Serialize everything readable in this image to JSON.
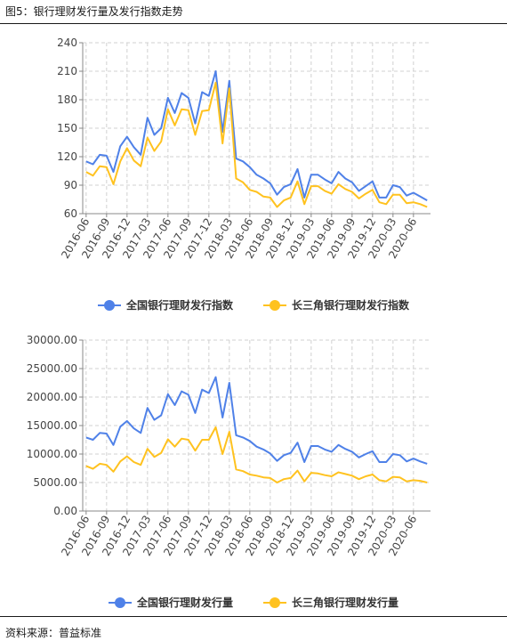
{
  "header": {
    "title": "图5：银行理财发行量及发行指数走势"
  },
  "footer": {
    "source": "资料来源：普益标准"
  },
  "colors": {
    "blue": "#4F81E8",
    "yellow": "#FFC21F",
    "grid": "#d0d0d0",
    "axis": "#888888"
  },
  "chart_data": [
    {
      "type": "line",
      "title": "",
      "xlabel": "",
      "ylabel": "",
      "ylim": [
        60,
        240
      ],
      "yticks": [
        "60",
        "90",
        "120",
        "150",
        "180",
        "210",
        "240"
      ],
      "grid": true,
      "legend_position": "bottom",
      "x_tick_labels": [
        "2016-06",
        "2016-09",
        "2016-12",
        "2017-03",
        "2017-06",
        "2017-09",
        "2017-12",
        "2018-03",
        "2018-06",
        "2018-09",
        "2018-12",
        "2019-03",
        "2019-06",
        "2019-09",
        "2019-12",
        "2020-03",
        "2020-06"
      ],
      "x": [
        "2016-06",
        "2016-07",
        "2016-08",
        "2016-09",
        "2016-10",
        "2016-11",
        "2016-12",
        "2017-01",
        "2017-02",
        "2017-03",
        "2017-04",
        "2017-05",
        "2017-06",
        "2017-07",
        "2017-08",
        "2017-09",
        "2017-10",
        "2017-11",
        "2017-12",
        "2018-01",
        "2018-02",
        "2018-03",
        "2018-04",
        "2018-05",
        "2018-06",
        "2018-07",
        "2018-08",
        "2018-09",
        "2018-10",
        "2018-11",
        "2018-12",
        "2019-01",
        "2019-02",
        "2019-03",
        "2019-04",
        "2019-05",
        "2019-06",
        "2019-07",
        "2019-08",
        "2019-09",
        "2019-10",
        "2019-11",
        "2019-12",
        "2020-01",
        "2020-02",
        "2020-03",
        "2020-04",
        "2020-05",
        "2020-06",
        "2020-07",
        "2020-08"
      ],
      "series": [
        {
          "name": "全国银行理财发行指数",
          "color": "#4F81E8",
          "values": [
            115,
            112,
            122,
            121,
            104,
            131,
            141,
            130,
            122,
            161,
            143,
            150,
            182,
            166,
            187,
            182,
            155,
            188,
            184,
            210,
            146,
            200,
            118,
            115,
            109,
            101,
            97,
            92,
            80,
            88,
            91,
            107,
            77,
            101,
            101,
            96,
            92,
            104,
            97,
            93,
            84,
            89,
            94,
            77,
            77,
            90,
            88,
            79,
            82,
            78,
            74
          ]
        },
        {
          "name": "长三角银行理财发行指数",
          "color": "#FFC21F",
          "values": [
            104,
            100,
            110,
            109,
            91,
            115,
            129,
            116,
            110,
            140,
            126,
            136,
            170,
            153,
            170,
            169,
            143,
            168,
            169,
            198,
            134,
            192,
            97,
            93,
            85,
            83,
            78,
            77,
            67,
            74,
            77,
            94,
            70,
            89,
            89,
            84,
            81,
            91,
            86,
            83,
            76,
            81,
            85,
            72,
            70,
            80,
            80,
            71,
            72,
            70,
            67
          ]
        }
      ]
    },
    {
      "type": "line",
      "title": "",
      "xlabel": "",
      "ylabel": "",
      "ylim": [
        0,
        30000
      ],
      "yticks": [
        "0.00",
        "5000.00",
        "10000.00",
        "15000.00",
        "20000.00",
        "25000.00",
        "30000.00"
      ],
      "grid": true,
      "legend_position": "bottom",
      "x_tick_labels": [
        "2016-06",
        "2016-09",
        "2016-12",
        "2017-03",
        "2017-06",
        "2017-09",
        "2017-12",
        "2018-03",
        "2018-06",
        "2018-09",
        "2018-12",
        "2019-03",
        "2019-06",
        "2019-09",
        "2019-12",
        "2020-03",
        "2020-06"
      ],
      "x": [
        "2016-06",
        "2016-07",
        "2016-08",
        "2016-09",
        "2016-10",
        "2016-11",
        "2016-12",
        "2017-01",
        "2017-02",
        "2017-03",
        "2017-04",
        "2017-05",
        "2017-06",
        "2017-07",
        "2017-08",
        "2017-09",
        "2017-10",
        "2017-11",
        "2017-12",
        "2018-01",
        "2018-02",
        "2018-03",
        "2018-04",
        "2018-05",
        "2018-06",
        "2018-07",
        "2018-08",
        "2018-09",
        "2018-10",
        "2018-11",
        "2018-12",
        "2019-01",
        "2019-02",
        "2019-03",
        "2019-04",
        "2019-05",
        "2019-06",
        "2019-07",
        "2019-08",
        "2019-09",
        "2019-10",
        "2019-11",
        "2019-12",
        "2020-01",
        "2020-02",
        "2020-03",
        "2020-04",
        "2020-05",
        "2020-06",
        "2020-07",
        "2020-08"
      ],
      "series": [
        {
          "name": "全国银行理财发行量",
          "color": "#4F81E8",
          "values": [
            12900,
            12500,
            13700,
            13600,
            11600,
            14800,
            15800,
            14500,
            13700,
            18100,
            16000,
            16800,
            20500,
            18600,
            21000,
            20400,
            17200,
            21300,
            20700,
            23500,
            16400,
            22500,
            13300,
            12900,
            12300,
            11300,
            10800,
            10100,
            8800,
            9800,
            10200,
            12000,
            8600,
            11400,
            11400,
            10800,
            10400,
            11600,
            10900,
            10400,
            9400,
            10000,
            10500,
            8600,
            8600,
            10000,
            9800,
            8700,
            9200,
            8700,
            8300
          ]
        },
        {
          "name": "长三角银行理财发行量",
          "color": "#FFC21F",
          "values": [
            7900,
            7400,
            8300,
            8100,
            6900,
            8700,
            9600,
            8600,
            8100,
            10900,
            9500,
            10200,
            12600,
            11300,
            12700,
            12500,
            10600,
            12500,
            12500,
            14700,
            10000,
            13900,
            7300,
            7000,
            6400,
            6200,
            5900,
            5800,
            5000,
            5600,
            5800,
            7100,
            5200,
            6700,
            6600,
            6300,
            6100,
            6800,
            6500,
            6200,
            5600,
            6100,
            6400,
            5400,
            5200,
            6000,
            5900,
            5200,
            5400,
            5300,
            5000
          ]
        }
      ]
    }
  ]
}
